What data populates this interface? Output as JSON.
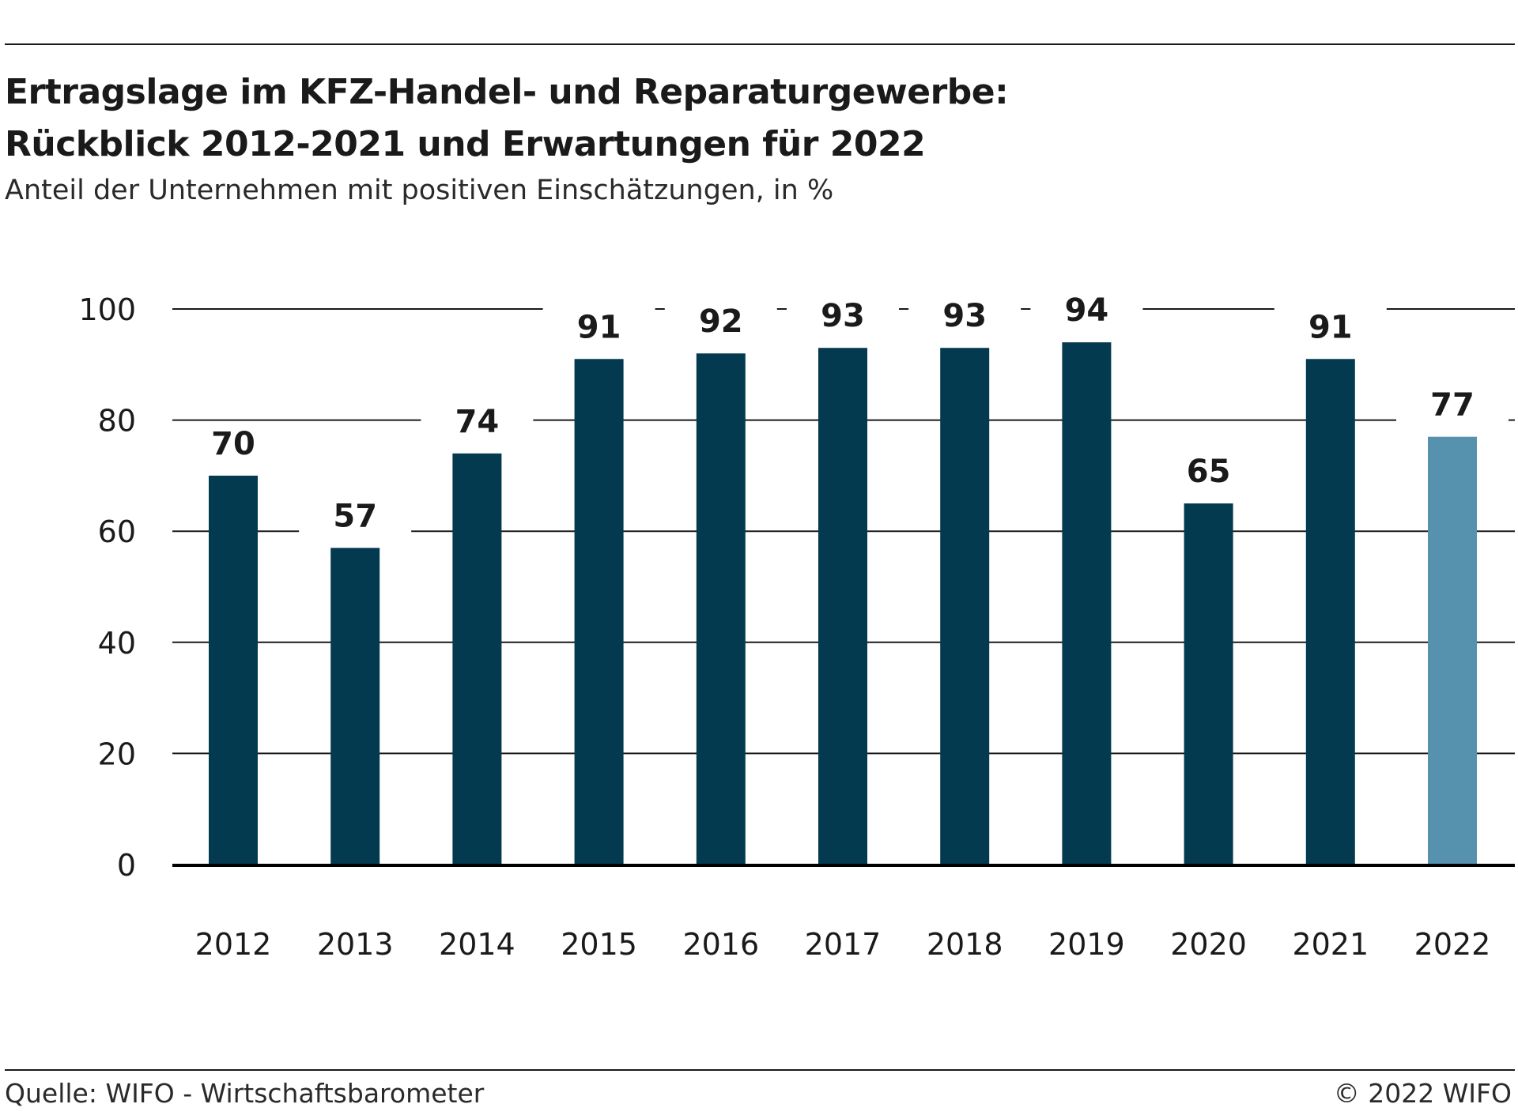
{
  "header": {
    "title_line1": "Ertragslage im KFZ-Handel- und Reparaturgewerbe:",
    "title_line2": "Rückblick 2012-2021 und Erwartungen für 2022",
    "subtitle": "Anteil der Unternehmen mit positiven Einschätzungen, in %"
  },
  "footer": {
    "source": "Quelle: WIFO - Wirtschaftsbarometer",
    "copyright": "© 2022 WIFO"
  },
  "colors": {
    "bar_actual": "#033a50",
    "bar_expectation": "#5691ad",
    "grid": "#1a1a1a",
    "text": "#1a1a1a"
  },
  "chart_data": {
    "type": "bar",
    "title": "Ertragslage im KFZ-Handel- und Reparaturgewerbe: Rückblick 2012-2021 und Erwartungen für 2022",
    "subtitle": "Anteil der Unternehmen mit positiven Einschätzungen, in %",
    "categories": [
      "2012",
      "2013",
      "2014",
      "2015",
      "2016",
      "2017",
      "2018",
      "2019",
      "2020",
      "2021",
      "2022"
    ],
    "values": [
      70,
      57,
      74,
      91,
      92,
      93,
      93,
      94,
      65,
      91,
      77
    ],
    "data_labels": [
      "70",
      "57",
      "74",
      "91",
      "92",
      "93",
      "93",
      "94",
      "65",
      "91",
      "77"
    ],
    "highlighted_categories": [
      "2022"
    ],
    "ylim": [
      0,
      100
    ],
    "yticks": [
      0,
      20,
      40,
      60,
      80,
      100
    ],
    "ytick_labels": [
      "0",
      "20",
      "40",
      "60",
      "80",
      "100"
    ],
    "xlabel": "",
    "ylabel": "",
    "grid": true,
    "legend": false
  }
}
